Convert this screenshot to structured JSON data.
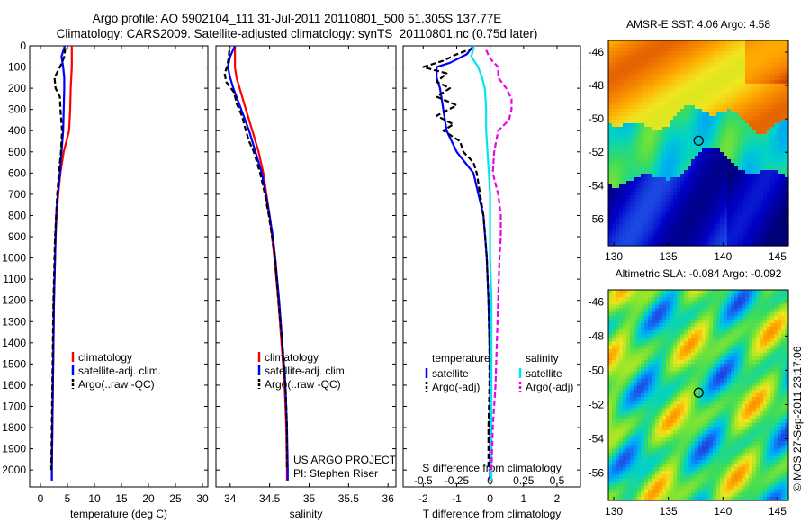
{
  "header": {
    "line1": "Argo profile: AO 5902104_111 31-Jul-2011 20110801_500 51.305S 137.77E",
    "line2": "Climatology: CARS2009. Satellite-adjusted climatology: synTS_20110801.nc (0.75d later)"
  },
  "colors": {
    "climatology": "#ff0000",
    "satellite": "#0000ff",
    "argo": "#000000",
    "salinity_sat": "#00e5ee",
    "salinity_argo": "#ee00ee"
  },
  "depth_ticks": [
    "0",
    "100",
    "200",
    "300",
    "400",
    "500",
    "600",
    "700",
    "800",
    "900",
    "1000",
    "1100",
    "1200",
    "1300",
    "1400",
    "1500",
    "1600",
    "1700",
    "1800",
    "1900",
    "2000"
  ],
  "chart_data": [
    {
      "type": "line",
      "panel": "temperature",
      "xlabel": "temperature (deg C)",
      "xticks": [
        "0",
        "5",
        "10",
        "15",
        "20",
        "25",
        "30"
      ],
      "xlim": [
        -2,
        31
      ],
      "ylim": [
        2080,
        0
      ],
      "legend": {
        "placement": "lower-center",
        "entries": [
          "climatology",
          "satellite-adj. clim.",
          "Argo(..raw -QC)"
        ]
      },
      "series": [
        {
          "name": "climatology",
          "style": "solid-red",
          "depth": [
            0,
            100,
            200,
            300,
            400,
            500,
            600,
            700,
            800,
            900,
            1000,
            1200,
            1400,
            1600,
            1800,
            2000,
            2050
          ],
          "values": [
            5.8,
            5.8,
            5.6,
            5.5,
            5.3,
            4.3,
            3.7,
            3.3,
            3.0,
            2.8,
            2.7,
            2.5,
            2.4,
            2.3,
            2.2,
            2.1,
            2.1
          ]
        },
        {
          "name": "satellite-adj. clim.",
          "style": "solid-blue",
          "depth": [
            0,
            50,
            100,
            150,
            200,
            300,
            400,
            500,
            600,
            700,
            800,
            900,
            1000,
            1200,
            1400,
            1600,
            1800,
            2000,
            2050
          ],
          "values": [
            4.5,
            3.9,
            4.2,
            4.4,
            4.4,
            4.3,
            4.2,
            3.9,
            3.6,
            3.2,
            2.9,
            2.8,
            2.7,
            2.5,
            2.4,
            2.3,
            2.2,
            2.1,
            2.1
          ]
        },
        {
          "name": "Argo(..raw -QC)",
          "style": "dashed-black",
          "depth": [
            10,
            50,
            80,
            120,
            150,
            200,
            240,
            300,
            400,
            500,
            600,
            700,
            800,
            900,
            1000,
            1200,
            1400,
            1600,
            1800,
            2000
          ],
          "values": [
            4.6,
            4.4,
            4.0,
            3.2,
            2.6,
            2.8,
            3.6,
            3.7,
            4.0,
            3.8,
            3.4,
            3.1,
            2.9,
            2.7,
            2.6,
            2.4,
            2.3,
            2.2,
            2.1,
            2.0
          ]
        }
      ],
      "annotations": []
    },
    {
      "type": "line",
      "panel": "salinity",
      "xlabel": "salinity",
      "xticks": [
        "34",
        "34.5",
        "35",
        "35.5",
        "36"
      ],
      "xlim": [
        33.82,
        36.1
      ],
      "ylim": [
        2080,
        0
      ],
      "legend": {
        "placement": "lower-center",
        "entries": [
          "climatology",
          "satellite-adj. clim.",
          "Argo(..raw -QC)"
        ]
      },
      "series": [
        {
          "name": "climatology",
          "style": "solid-red",
          "depth": [
            0,
            100,
            150,
            200,
            300,
            400,
            500,
            600,
            700,
            800,
            900,
            1000,
            1200,
            1400,
            1600,
            1800,
            2000,
            2050
          ],
          "values": [
            34.06,
            34.06,
            34.08,
            34.12,
            34.2,
            34.28,
            34.36,
            34.42,
            34.46,
            34.5,
            34.53,
            34.56,
            34.61,
            34.65,
            34.69,
            34.71,
            34.72,
            34.72
          ]
        },
        {
          "name": "satellite-adj. clim.",
          "style": "solid-blue",
          "depth": [
            0,
            50,
            100,
            150,
            200,
            300,
            400,
            500,
            600,
            700,
            800,
            900,
            1000,
            1200,
            1400,
            1600,
            1800,
            2000,
            2050
          ],
          "values": [
            34.06,
            34.0,
            33.97,
            34.0,
            34.04,
            34.14,
            34.24,
            34.32,
            34.4,
            34.45,
            34.5,
            34.54,
            34.57,
            34.62,
            34.66,
            34.7,
            34.72,
            34.73,
            34.73
          ]
        },
        {
          "name": "Argo(..raw -QC)",
          "style": "dashed-black",
          "depth": [
            20,
            60,
            100,
            130,
            170,
            220,
            270,
            330,
            400,
            450,
            500,
            600,
            700,
            800,
            900,
            1000,
            1200,
            1400,
            1600,
            1800,
            2000
          ],
          "values": [
            33.99,
            33.98,
            33.96,
            33.93,
            33.95,
            34.05,
            34.08,
            34.15,
            34.2,
            34.24,
            34.3,
            34.38,
            34.44,
            34.49,
            34.53,
            34.57,
            34.61,
            34.66,
            34.7,
            34.72,
            34.72
          ]
        }
      ],
      "annotations": [
        "US ARGO PROJECT",
        "PI: Stephen Riser"
      ]
    },
    {
      "type": "line",
      "panel": "difference",
      "xlabel": "T difference from climatology",
      "xlabel_top": "S difference from climatology",
      "xticks": [
        "-2",
        "-1",
        "0",
        "1",
        "2"
      ],
      "xticks_s": [
        "-0.5",
        "-0.25",
        "0",
        "0.25",
        "0.5"
      ],
      "xlim": [
        -2.6,
        2.7
      ],
      "ylim": [
        2080,
        0
      ],
      "legend": {
        "placement": "lower-center",
        "headers": [
          "temperature",
          "salinity"
        ],
        "entries": [
          "satellite",
          "Argo(-adj)",
          "satellite",
          "Argo(-adj)"
        ]
      },
      "series": [
        {
          "name": "satellite",
          "quantity": "temperature",
          "style": "solid-blue",
          "depth": [
            0,
            40,
            80,
            100,
            150,
            200,
            300,
            400,
            500,
            600,
            700,
            800,
            900,
            1000,
            1200,
            1400,
            1600,
            1800,
            2000,
            2050
          ],
          "values": [
            -0.5,
            -0.7,
            -1.2,
            -1.6,
            -1.6,
            -1.5,
            -1.4,
            -1.3,
            -1.0,
            -0.5,
            -0.35,
            -0.2,
            -0.15,
            -0.1,
            -0.05,
            -0.02,
            0.0,
            0.0,
            0.0,
            0.0
          ]
        },
        {
          "name": "Argo(-adj)",
          "quantity": "temperature",
          "style": "dashed-black",
          "depth": [
            10,
            40,
            70,
            100,
            130,
            170,
            200,
            240,
            280,
            330,
            370,
            400,
            450,
            500,
            550,
            600,
            700,
            800,
            900,
            1000,
            1200,
            1400,
            1600,
            1800,
            2000
          ],
          "values": [
            -0.5,
            -1.0,
            -1.4,
            -2.0,
            -1.3,
            -1.6,
            -1.2,
            -1.6,
            -1.0,
            -1.6,
            -1.1,
            -1.4,
            -0.9,
            -0.8,
            -0.5,
            -0.4,
            -0.3,
            -0.2,
            -0.15,
            -0.1,
            -0.05,
            -0.02,
            -0.02,
            -0.05,
            -0.05
          ]
        },
        {
          "name": "satellite",
          "quantity": "salinity",
          "style": "solid-cyan",
          "depth": [
            0,
            50,
            100,
            150,
            200,
            300,
            400,
            500,
            600,
            700,
            800,
            1000,
            1200,
            1400,
            1600,
            1800,
            2000,
            2050
          ],
          "values": [
            -0.12,
            -0.14,
            -0.09,
            -0.06,
            -0.04,
            -0.03,
            -0.03,
            -0.02,
            -0.01,
            0.0,
            0.0,
            0.0,
            0.01,
            0.01,
            0.01,
            0.01,
            0.01,
            0.01
          ]
        },
        {
          "name": "Argo(-adj)",
          "quantity": "salinity",
          "style": "dashed-magenta",
          "depth": [
            20,
            60,
            100,
            150,
            200,
            250,
            300,
            350,
            400,
            500,
            600,
            700,
            800,
            900,
            1000,
            1200,
            1400,
            1600,
            1800,
            2000
          ],
          "values": [
            -0.03,
            0.0,
            0.06,
            0.06,
            0.12,
            0.16,
            0.16,
            0.14,
            0.06,
            0.03,
            0.02,
            0.06,
            0.08,
            0.08,
            0.07,
            0.06,
            0.05,
            0.04,
            0.02,
            0.01
          ]
        }
      ],
      "annotations": []
    },
    {
      "type": "heatmap",
      "panel": "sst",
      "title": "AMSR-E SST: 4.06 Argo: 4.58",
      "xticks": [
        "130",
        "135",
        "140",
        "145"
      ],
      "yticks": [
        "-46",
        "-48",
        "-50",
        "-52",
        "-54",
        "-56"
      ],
      "xlim": [
        129.5,
        146
      ],
      "ylim": [
        -57.6,
        -45.3
      ],
      "marker": {
        "lon": 137.77,
        "lat": -51.305
      }
    },
    {
      "type": "heatmap",
      "panel": "sla",
      "title": "Altimetric SLA: -0.084 Argo: -0.092",
      "xticks": [
        "130",
        "135",
        "140",
        "145"
      ],
      "yticks": [
        "-46",
        "-48",
        "-50",
        "-52",
        "-54",
        "-56"
      ],
      "xlim": [
        129.5,
        146
      ],
      "ylim": [
        -57.6,
        -45.3
      ],
      "marker": {
        "lon": 137.77,
        "lat": -51.305
      }
    }
  ],
  "credit": "©IMOS 27-Sep-2011 23:17:06"
}
